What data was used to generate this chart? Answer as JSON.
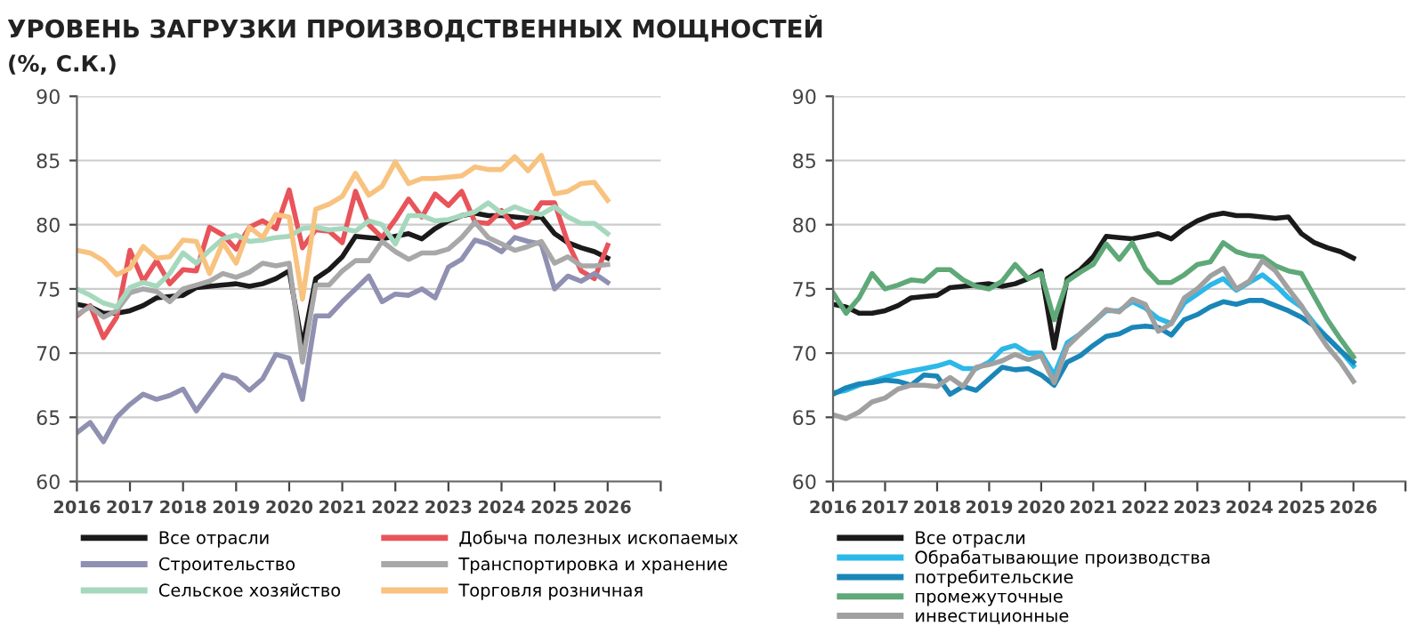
{
  "chart_data": [
    {
      "type": "line",
      "title": "УРОВЕНЬ ЗАГРУЗКИ ПРОИЗВОДСТВЕННЫХ МОЩНОСТЕЙ",
      "subtitle": "(%, С.К.)",
      "x": [
        2016,
        2016.25,
        2016.5,
        2016.75,
        2017,
        2017.25,
        2017.5,
        2017.75,
        2018,
        2018.25,
        2018.5,
        2018.75,
        2019,
        2019.25,
        2019.5,
        2019.75,
        2020,
        2020.25,
        2020.5,
        2020.75,
        2021,
        2021.25,
        2021.5,
        2021.75,
        2022,
        2022.25,
        2022.5,
        2022.75,
        2023,
        2023.25,
        2023.5,
        2023.75,
        2024,
        2024.25,
        2024.5,
        2024.75,
        2025,
        2025.25,
        2025.5,
        2025.75,
        2026
      ],
      "series": [
        {
          "name": "Все отрасли",
          "color": "#1a1a1a",
          "values": [
            73.8,
            73.6,
            73.1,
            73.1,
            73.3,
            73.7,
            74.3,
            74.4,
            74.5,
            75.1,
            75.2,
            75.3,
            75.4,
            75.2,
            75.4,
            75.8,
            76.4,
            70.5,
            75.8,
            76.5,
            77.5,
            79.1,
            79.0,
            78.9,
            79.1,
            79.3,
            78.9,
            79.7,
            80.3,
            80.7,
            80.9,
            80.7,
            80.7,
            80.6,
            80.5,
            80.6,
            79.3,
            78.6,
            78.2,
            77.9,
            77.4
          ]
        },
        {
          "name": "Добыча полезных ископаемых",
          "color": "#e8545a",
          "values": [
            72.9,
            73.7,
            71.2,
            72.8,
            78.0,
            75.6,
            77.2,
            75.4,
            76.5,
            76.4,
            79.8,
            79.2,
            78.1,
            79.8,
            80.3,
            79.7,
            82.7,
            78.2,
            79.6,
            79.5,
            78.6,
            82.6,
            80.0,
            79.0,
            80.4,
            82.0,
            80.6,
            82.4,
            81.5,
            82.6,
            80.2,
            80.1,
            81.1,
            79.8,
            80.2,
            81.7,
            81.7,
            78.6,
            76.4,
            75.8,
            78.4
          ]
        },
        {
          "name": "Строительство",
          "color": "#9090b2",
          "values": [
            63.8,
            64.6,
            63.1,
            65.0,
            66.0,
            66.8,
            66.4,
            66.7,
            67.2,
            65.5,
            66.9,
            68.3,
            68.0,
            67.1,
            68.0,
            69.9,
            69.6,
            66.4,
            72.9,
            72.9,
            74.0,
            75.0,
            76.0,
            74.0,
            74.6,
            74.5,
            75.0,
            74.3,
            76.7,
            77.3,
            78.8,
            78.5,
            77.9,
            79.0,
            78.7,
            78.5,
            75.0,
            76.0,
            75.6,
            76.2,
            75.5
          ]
        },
        {
          "name": "Транспортировка и хранение",
          "color": "#a8a8a8",
          "values": [
            73.0,
            73.6,
            72.8,
            73.3,
            74.7,
            75.0,
            74.8,
            74.0,
            75.0,
            75.3,
            75.6,
            76.2,
            75.9,
            76.3,
            77.0,
            76.8,
            77.0,
            69.3,
            75.3,
            75.3,
            76.4,
            77.2,
            77.2,
            78.7,
            77.9,
            77.3,
            77.8,
            77.8,
            78.1,
            79.0,
            80.2,
            79.0,
            78.5,
            78.0,
            78.3,
            78.7,
            77.0,
            77.5,
            76.8,
            76.8,
            76.9
          ]
        },
        {
          "name": "Сельское хозяйство",
          "color": "#a6d8bd",
          "values": [
            75.0,
            74.5,
            73.9,
            73.6,
            75.1,
            75.5,
            75.2,
            76.2,
            77.8,
            77.0,
            78.0,
            78.9,
            79.2,
            78.7,
            78.8,
            79.0,
            79.1,
            79.7,
            79.8,
            79.6,
            79.7,
            79.5,
            80.3,
            80.0,
            78.5,
            80.7,
            80.7,
            80.3,
            80.4,
            80.7,
            81.0,
            81.7,
            80.9,
            81.4,
            81.0,
            80.8,
            81.4,
            80.6,
            80.1,
            80.1,
            79.3
          ]
        },
        {
          "name": "Торговля розничная",
          "color": "#f8c27f",
          "values": [
            78.0,
            77.8,
            77.2,
            76.1,
            76.6,
            78.3,
            77.4,
            77.5,
            78.8,
            78.7,
            76.2,
            78.6,
            77.0,
            79.8,
            79.0,
            80.8,
            80.6,
            74.2,
            81.2,
            81.6,
            82.2,
            84.0,
            82.3,
            83.0,
            84.9,
            83.2,
            83.6,
            83.6,
            83.7,
            83.8,
            84.5,
            84.3,
            84.3,
            85.3,
            84.2,
            85.4,
            82.4,
            82.6,
            83.2,
            83.3,
            81.9
          ]
        }
      ],
      "xlim": [
        2016,
        2027
      ],
      "xticks": [
        2016,
        2017,
        2018,
        2019,
        2020,
        2021,
        2022,
        2023,
        2024,
        2025,
        2026,
        {
          "value": 2027,
          "label": null
        }
      ],
      "ylim": [
        60,
        90
      ],
      "yticks": [
        60,
        65,
        70,
        75,
        80,
        85,
        90
      ],
      "grid": "y",
      "legend": "bottom"
    },
    {
      "type": "line",
      "x": [
        2016,
        2016.25,
        2016.5,
        2016.75,
        2017,
        2017.25,
        2017.5,
        2017.75,
        2018,
        2018.25,
        2018.5,
        2018.75,
        2019,
        2019.25,
        2019.5,
        2019.75,
        2020,
        2020.25,
        2020.5,
        2020.75,
        2021,
        2021.25,
        2021.5,
        2021.75,
        2022,
        2022.25,
        2022.5,
        2022.75,
        2023,
        2023.25,
        2023.5,
        2023.75,
        2024,
        2024.25,
        2024.5,
        2024.75,
        2025,
        2025.25,
        2025.5,
        2025.75,
        2026
      ],
      "series": [
        {
          "name": "Все отрасли",
          "color": "#1a1a1a",
          "values": [
            73.8,
            73.6,
            73.1,
            73.1,
            73.3,
            73.7,
            74.3,
            74.4,
            74.5,
            75.1,
            75.2,
            75.3,
            75.4,
            75.2,
            75.4,
            75.8,
            76.4,
            70.4,
            75.8,
            76.5,
            77.5,
            79.1,
            79.0,
            78.9,
            79.1,
            79.3,
            78.9,
            79.7,
            80.3,
            80.7,
            80.9,
            80.7,
            80.7,
            80.6,
            80.5,
            80.6,
            79.3,
            78.6,
            78.2,
            77.9,
            77.4
          ]
        },
        {
          "name": "Обрабатывающие производства",
          "color": "#2cb8e8",
          "values": [
            66.9,
            67.1,
            67.5,
            67.8,
            68.1,
            68.4,
            68.6,
            68.8,
            69.0,
            69.3,
            68.8,
            68.8,
            69.3,
            70.3,
            70.6,
            70.0,
            70.0,
            68.3,
            70.8,
            71.5,
            72.4,
            73.3,
            73.3,
            74.0,
            73.5,
            72.7,
            72.3,
            73.9,
            74.6,
            75.3,
            75.8,
            74.9,
            75.5,
            76.1,
            75.3,
            74.3,
            73.6,
            72.3,
            71.2,
            70.2,
            69.0
          ]
        },
        {
          "name": "потребительские",
          "color": "#1a86b8",
          "values": [
            66.8,
            67.3,
            67.6,
            67.7,
            67.9,
            67.8,
            67.5,
            68.3,
            68.2,
            66.8,
            67.4,
            67.1,
            68.0,
            68.9,
            68.7,
            68.8,
            68.3,
            67.5,
            69.3,
            69.8,
            70.6,
            71.3,
            71.5,
            72.0,
            72.1,
            72.0,
            71.4,
            72.6,
            73.0,
            73.6,
            74.0,
            73.8,
            74.1,
            74.1,
            73.7,
            73.3,
            72.8,
            72.1,
            71.2,
            70.2,
            69.3
          ]
        },
        {
          "name": "промежуточные",
          "color": "#5fa878",
          "values": [
            74.7,
            73.1,
            74.3,
            76.2,
            75.0,
            75.3,
            75.7,
            75.6,
            76.5,
            76.5,
            75.7,
            75.2,
            75.0,
            75.6,
            76.9,
            75.8,
            76.2,
            72.6,
            75.6,
            76.3,
            76.9,
            78.5,
            77.3,
            78.6,
            76.6,
            75.5,
            75.5,
            76.1,
            76.9,
            77.1,
            78.6,
            77.9,
            77.6,
            77.5,
            76.8,
            76.4,
            76.2,
            74.4,
            72.6,
            71.1,
            69.7
          ]
        },
        {
          "name": "инвестиционные",
          "color": "#a0a0a0",
          "values": [
            65.2,
            64.9,
            65.4,
            66.2,
            66.5,
            67.2,
            67.5,
            67.5,
            67.4,
            68.1,
            67.4,
            68.9,
            69.1,
            69.4,
            69.9,
            69.5,
            69.8,
            67.7,
            70.5,
            71.5,
            72.4,
            73.4,
            73.2,
            74.2,
            73.8,
            71.7,
            72.3,
            74.3,
            75.0,
            76.0,
            76.6,
            75.0,
            75.6,
            77.2,
            76.4,
            75.0,
            73.7,
            72.0,
            70.5,
            69.3,
            67.8
          ]
        }
      ],
      "xlim": [
        2016,
        2027
      ],
      "xticks": [
        2016,
        2017,
        2018,
        2019,
        2020,
        2021,
        2022,
        2023,
        2024,
        2025,
        2026,
        {
          "value": 2027,
          "label": null
        }
      ],
      "ylim": [
        60,
        90
      ],
      "yticks": [
        60,
        65,
        70,
        75,
        80,
        85,
        90
      ],
      "grid": "y",
      "legend": "bottom"
    }
  ]
}
